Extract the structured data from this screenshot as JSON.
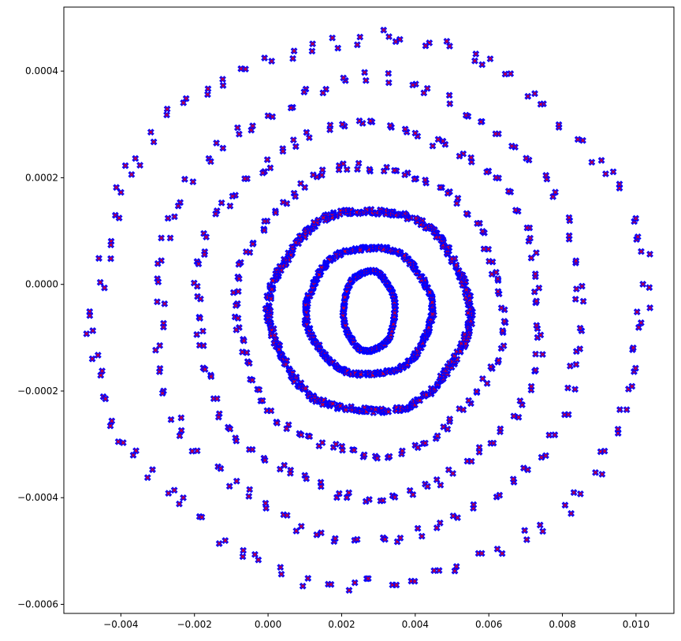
{
  "chart_data": {
    "type": "scatter",
    "title": "",
    "xlabel": "",
    "ylabel": "",
    "xlim": [
      -0.00555,
      0.01103
    ],
    "ylim": [
      -0.000617,
      0.00052
    ],
    "grid": false,
    "legend": "none",
    "x_ticks": [
      {
        "value": -0.004,
        "label": "−0.004"
      },
      {
        "value": -0.002,
        "label": "−0.002"
      },
      {
        "value": 0.0,
        "label": "0.000"
      },
      {
        "value": 0.002,
        "label": "0.002"
      },
      {
        "value": 0.004,
        "label": "0.004"
      },
      {
        "value": 0.006,
        "label": "0.006"
      },
      {
        "value": 0.008,
        "label": "0.008"
      },
      {
        "value": 0.01,
        "label": "0.010"
      }
    ],
    "y_ticks": [
      {
        "value": 0.0004,
        "label": "0.0004"
      },
      {
        "value": 0.0002,
        "label": "0.0002"
      },
      {
        "value": 0.0,
        "label": "0.0000"
      },
      {
        "value": -0.0002,
        "label": "−0.0002"
      },
      {
        "value": -0.0004,
        "label": "−0.0004"
      },
      {
        "value": -0.0006,
        "label": "−0.0006"
      }
    ],
    "series_style": {
      "marker": "x",
      "marker_color": "#ff0000",
      "overlay_color": "#0000ff"
    },
    "center": [
      0.00275,
      -5e-05
    ],
    "rings": [
      {
        "rx": 0.0007,
        "ry": 7.5e-05,
        "count": 70,
        "cluster": 3
      },
      {
        "rx": 0.0017,
        "ry": 0.00012,
        "count": 110,
        "cluster": 3
      },
      {
        "rx": 0.0027,
        "ry": 0.00019,
        "count": 140,
        "cluster": 3
      },
      {
        "rx": 0.0036,
        "ry": 0.00027,
        "count": 70,
        "cluster": 2
      },
      {
        "rx": 0.0047,
        "ry": 0.00035,
        "count": 70,
        "cluster": 2
      },
      {
        "rx": 0.0058,
        "ry": 0.00043,
        "count": 65,
        "cluster": 2
      },
      {
        "rx": 0.0075,
        "ry": 0.00051,
        "count": 75,
        "cluster": 2
      }
    ]
  }
}
